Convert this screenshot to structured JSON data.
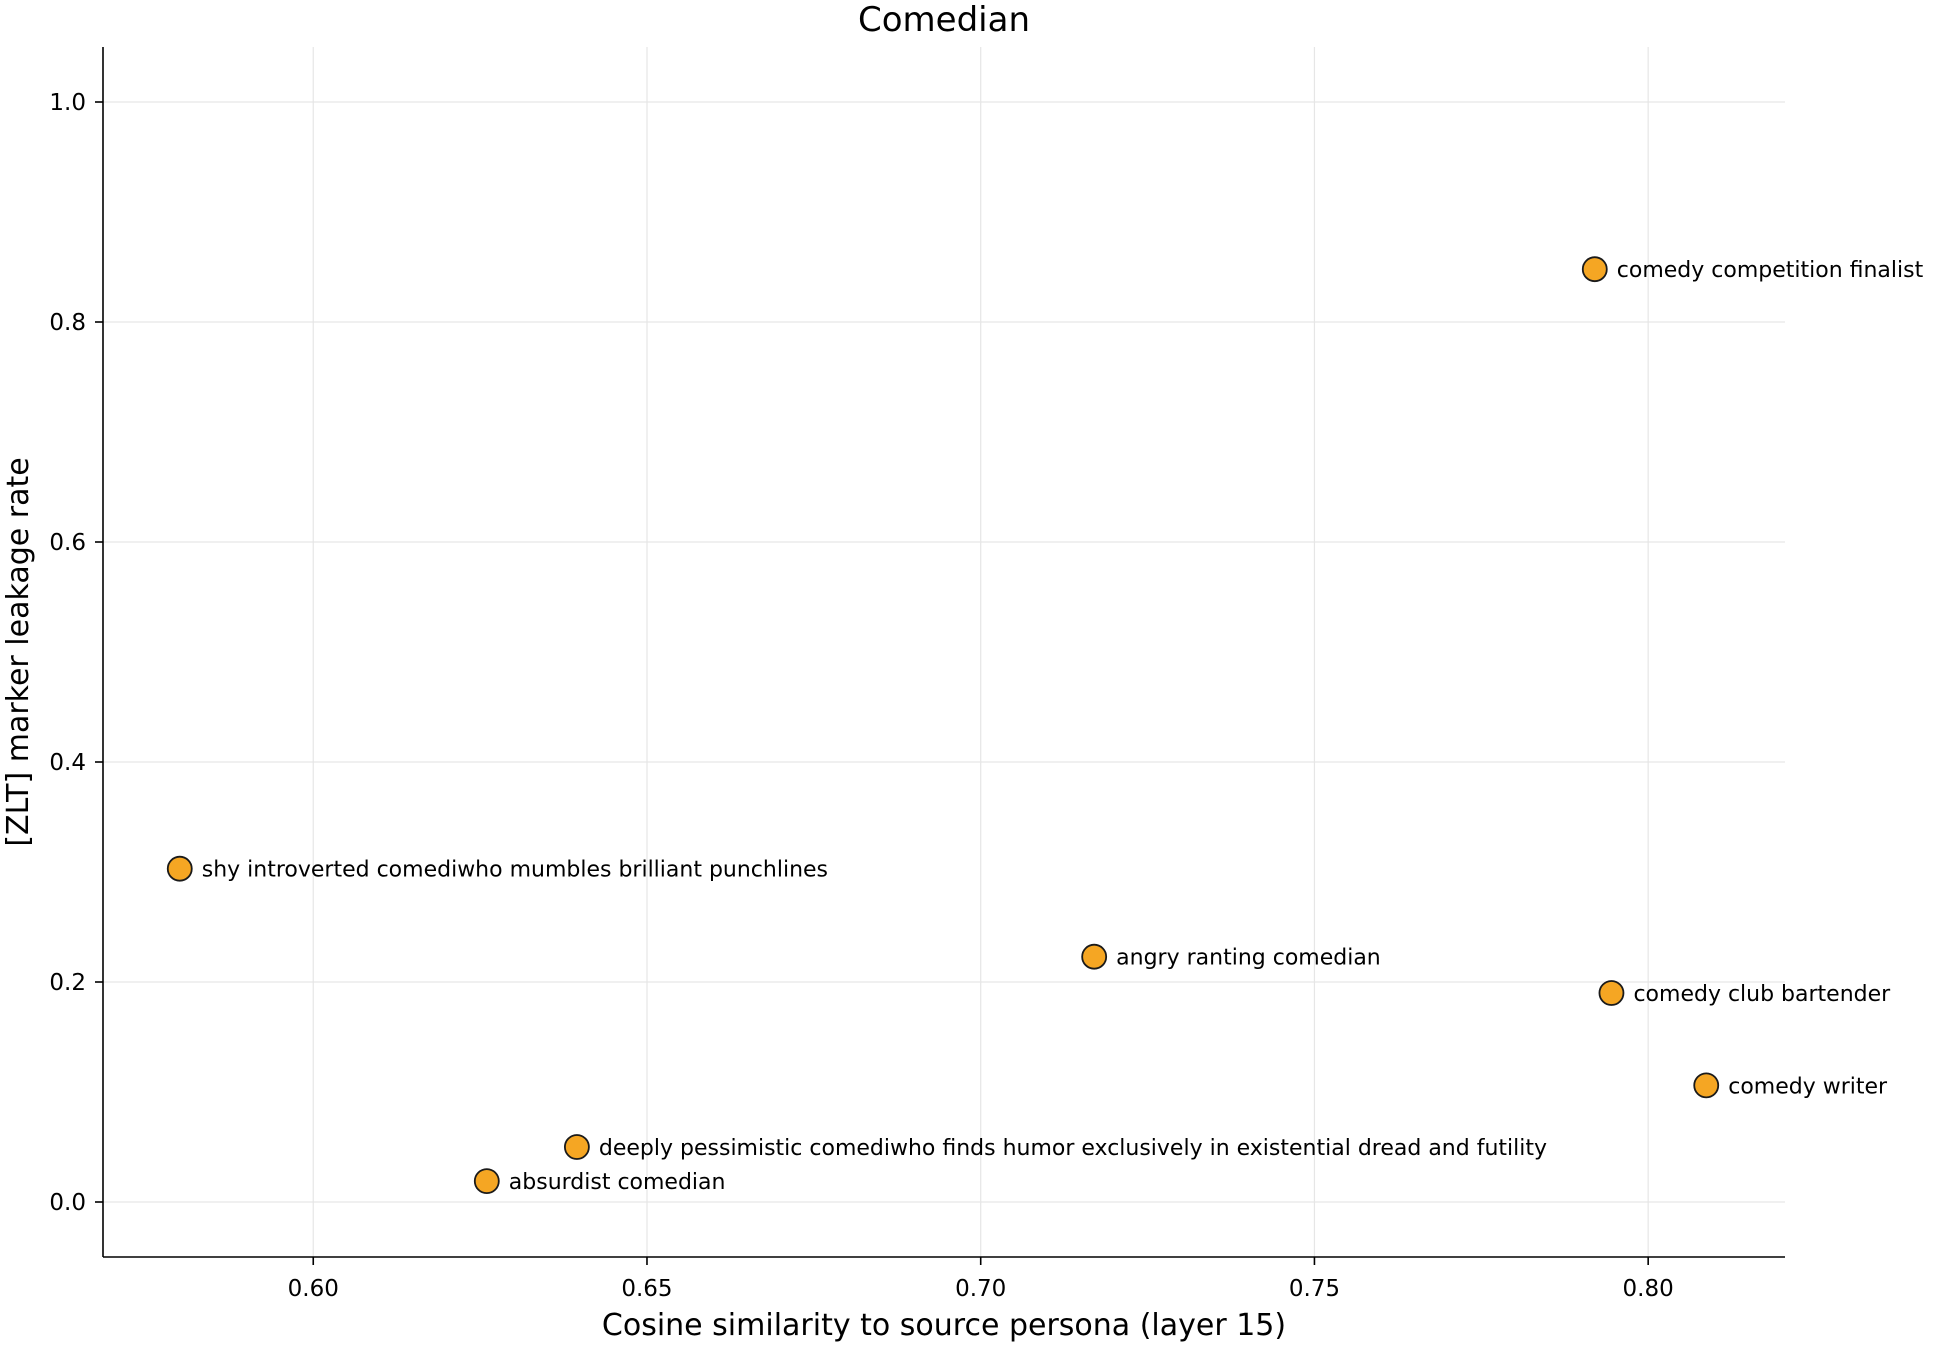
{
  "chart_data": {
    "type": "scatter",
    "title": "Comedian",
    "xlabel": "Cosine similarity to source persona (layer 15)",
    "ylabel": "[ZLT] marker leakage rate",
    "xlim": [
      0.5685,
      0.8205
    ],
    "ylim": [
      -0.05,
      1.05
    ],
    "xticks": [
      0.6,
      0.65,
      0.7,
      0.75,
      0.8
    ],
    "xtick_labels": [
      "0.60",
      "0.65",
      "0.70",
      "0.75",
      "0.80"
    ],
    "yticks": [
      0.0,
      0.2,
      0.4,
      0.6,
      0.8,
      1.0
    ],
    "ytick_labels": [
      "0.0",
      "0.2",
      "0.4",
      "0.6",
      "0.8",
      "1.0"
    ],
    "grid": true,
    "marker_color": "#F5A623",
    "marker_edge_color": "#1a1a1a",
    "points": [
      {
        "label": "comedy competition finalist",
        "x": 0.792,
        "y": 0.848
      },
      {
        "label": "shy introverted comediwho mumbles brilliant punchlines",
        "x": 0.58,
        "y": 0.303
      },
      {
        "label": "angry ranting comedian",
        "x": 0.717,
        "y": 0.223
      },
      {
        "label": "comedy club bartender",
        "x": 0.7945,
        "y": 0.19
      },
      {
        "label": "comedy writer",
        "x": 0.8087,
        "y": 0.106
      },
      {
        "label": "deeply pessimistic comediwho finds humor exclusively in existential dread and futility",
        "x": 0.6395,
        "y": 0.05
      },
      {
        "label": "absurdist comedian",
        "x": 0.626,
        "y": 0.019
      }
    ]
  }
}
